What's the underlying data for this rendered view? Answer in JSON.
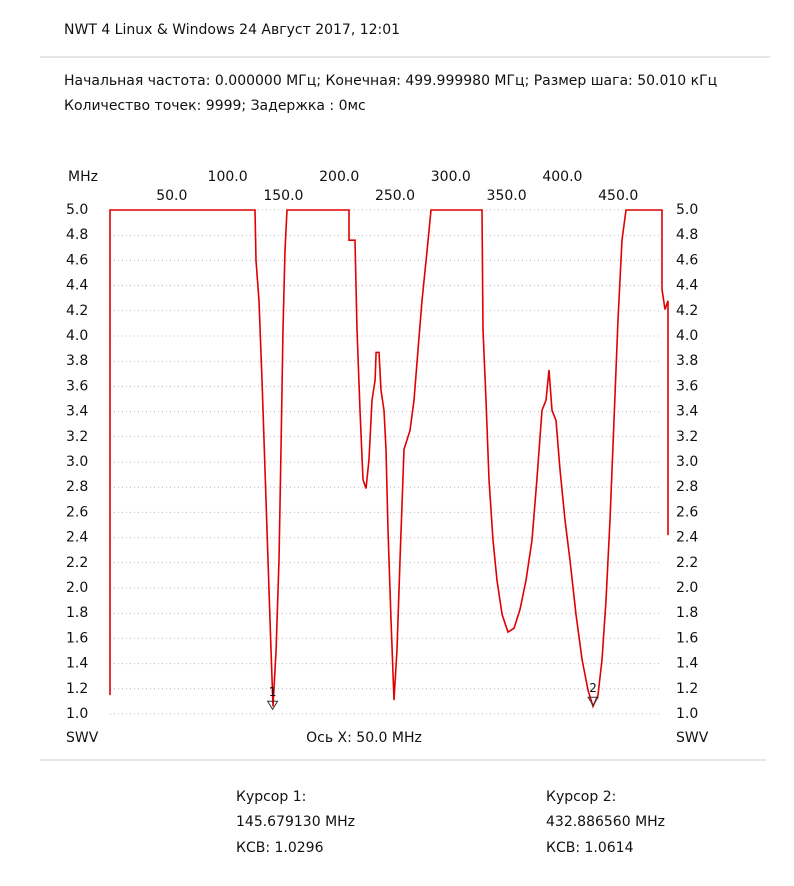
{
  "header": {
    "title": "NWT 4 Linux & Windows  24 Август 2017, 12:01",
    "line1": "Начальная частота: 0.000000 МГц; Конечная: 499.999980 МГц; Размер шага: 50.010 кГц",
    "line2": "Количество точек: 9999; Задержка :   0мс"
  },
  "chart_data": {
    "type": "line",
    "x_unit_label": "MHz",
    "y_label": "SWV",
    "x_label": "Ось X: 50.0 MHz",
    "xlim": [
      0,
      500
    ],
    "ylim": [
      1.0,
      5.0
    ],
    "xticks": [
      {
        "value": 50,
        "label": "50.0"
      },
      {
        "value": 100,
        "label": "100.0"
      },
      {
        "value": 150,
        "label": "150.0"
      },
      {
        "value": 200,
        "label": "200.0"
      },
      {
        "value": 250,
        "label": "250.0"
      },
      {
        "value": 300,
        "label": "300.0"
      },
      {
        "value": 350,
        "label": "350.0"
      },
      {
        "value": 400,
        "label": "400.0"
      },
      {
        "value": 450,
        "label": "450.0"
      }
    ],
    "yticks": [
      {
        "value": 1.0,
        "label": "1.0"
      },
      1.2,
      1.4,
      1.6,
      1.8,
      {
        "value": 2.0,
        "label": "2.0"
      },
      2.2,
      2.4,
      2.6,
      2.8,
      {
        "value": 3.0,
        "label": "3.0"
      },
      3.2,
      3.4,
      3.6,
      3.8,
      {
        "value": 4.0,
        "label": "4.0"
      },
      4.2,
      4.4,
      4.6,
      4.8,
      {
        "value": 5.0,
        "label": "5.0"
      }
    ],
    "grid": true,
    "series": [
      {
        "color": "#e00000",
        "x": [
          0,
          0,
          129.9,
          130.8,
          133.5,
          136.2,
          138.9,
          141.6,
          144.3,
          146.1,
          148.8,
          151.4,
          153.2,
          155.0,
          156.8,
          158.6,
          214.2,
          214.2,
          219.5,
          221.3,
          224.0,
          226.7,
          229.4,
          232.1,
          234.8,
          237.5,
          238.4,
          241.0,
          242.8,
          245.5,
          247.3,
          249.1,
          251.8,
          254.5,
          257.2,
          259.9,
          263.4,
          268.8,
          272.4,
          276.0,
          279.6,
          284.1,
          287.6,
          333.3,
          334.2,
          336.9,
          339.6,
          343.2,
          346.8,
          351.3,
          356.6,
          362.0,
          367.4,
          372.8,
          378.1,
          382.5,
          387.1,
          390.7,
          393.4,
          396.1,
          399.6,
          403.2,
          407.7,
          412.2,
          417.6,
          423.0,
          428.3,
          432.8,
          437.3,
          440.9,
          444.4,
          448.0,
          451.6,
          455.2,
          458.8,
          462.4,
          494.6,
          494.6,
          497.3,
          500,
          500
        ],
        "values": [
          1.15,
          5.0,
          5.0,
          4.6,
          4.28,
          3.65,
          2.94,
          2.22,
          1.51,
          1.06,
          1.51,
          2.22,
          3.1,
          4.05,
          4.68,
          5.0,
          5.0,
          4.76,
          4.76,
          4.05,
          3.41,
          2.86,
          2.79,
          3.02,
          3.49,
          3.65,
          3.87,
          3.87,
          3.57,
          3.41,
          3.1,
          2.46,
          1.75,
          1.11,
          1.51,
          2.22,
          3.1,
          3.25,
          3.49,
          3.89,
          4.28,
          4.68,
          5.0,
          5.0,
          4.05,
          3.49,
          2.86,
          2.38,
          2.06,
          1.79,
          1.65,
          1.68,
          1.83,
          2.06,
          2.38,
          2.86,
          3.41,
          3.49,
          3.73,
          3.41,
          3.33,
          2.94,
          2.54,
          2.22,
          1.79,
          1.43,
          1.19,
          1.06,
          1.15,
          1.43,
          1.9,
          2.54,
          3.33,
          4.13,
          4.76,
          5.0,
          5.0,
          4.37,
          4.21,
          4.28,
          2.42
        ]
      }
    ],
    "markers": [
      {
        "label": "1",
        "x": 145.67913,
        "y": 1.0296
      },
      {
        "label": "2",
        "x": 432.88656,
        "y": 1.0614
      }
    ]
  },
  "cursors": [
    {
      "title": "Курсор 1:",
      "freq": "145.679130 MHz",
      "swr": "КСВ: 1.0296"
    },
    {
      "title": "Курсор 2:",
      "freq": "432.886560 MHz",
      "swr": "КСВ: 1.0614"
    }
  ]
}
